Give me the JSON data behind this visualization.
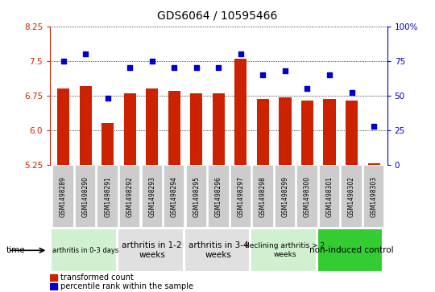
{
  "title": "GDS6064 / 10595466",
  "samples": [
    "GSM1498289",
    "GSM1498290",
    "GSM1498291",
    "GSM1498292",
    "GSM1498293",
    "GSM1498294",
    "GSM1498295",
    "GSM1498296",
    "GSM1498297",
    "GSM1498298",
    "GSM1498299",
    "GSM1498300",
    "GSM1498301",
    "GSM1498302",
    "GSM1498303"
  ],
  "transformed_count": [
    6.9,
    6.95,
    6.15,
    6.8,
    6.9,
    6.85,
    6.8,
    6.8,
    7.55,
    6.68,
    6.72,
    6.65,
    6.68,
    6.65,
    5.28
  ],
  "percentile_rank": [
    75,
    80,
    48,
    70,
    75,
    70,
    70,
    70,
    80,
    65,
    68,
    55,
    65,
    52,
    28
  ],
  "ylim_left": [
    5.25,
    8.25
  ],
  "ylim_right": [
    0,
    100
  ],
  "yticks_left": [
    5.25,
    6.0,
    6.75,
    7.5,
    8.25
  ],
  "yticks_right": [
    0,
    25,
    50,
    75,
    100
  ],
  "groups": [
    {
      "label": "arthritis in 0-3 days",
      "start": 0,
      "end": 3,
      "color": "#d0f0d0",
      "fontsize": 6
    },
    {
      "label": "arthritis in 1-2\nweeks",
      "start": 3,
      "end": 6,
      "color": "#e0e0e0",
      "fontsize": 7.5
    },
    {
      "label": "arthritis in 3-4\nweeks",
      "start": 6,
      "end": 9,
      "color": "#e0e0e0",
      "fontsize": 7.5
    },
    {
      "label": "declining arthritis > 2\nweeks",
      "start": 9,
      "end": 12,
      "color": "#d0f0d0",
      "fontsize": 6.5
    },
    {
      "label": "non-induced control",
      "start": 12,
      "end": 15,
      "color": "#33cc33",
      "fontsize": 7.5
    }
  ],
  "bar_color": "#cc2200",
  "dot_color": "#0000cc",
  "bar_bottom": 5.25,
  "left_tick_color": "#cc2200",
  "right_tick_color": "#0000cc",
  "legend_bar_label": "transformed count",
  "legend_dot_label": "percentile rank within the sample",
  "time_label": "time",
  "sample_box_color": "#cccccc",
  "background_color": "#ffffff"
}
